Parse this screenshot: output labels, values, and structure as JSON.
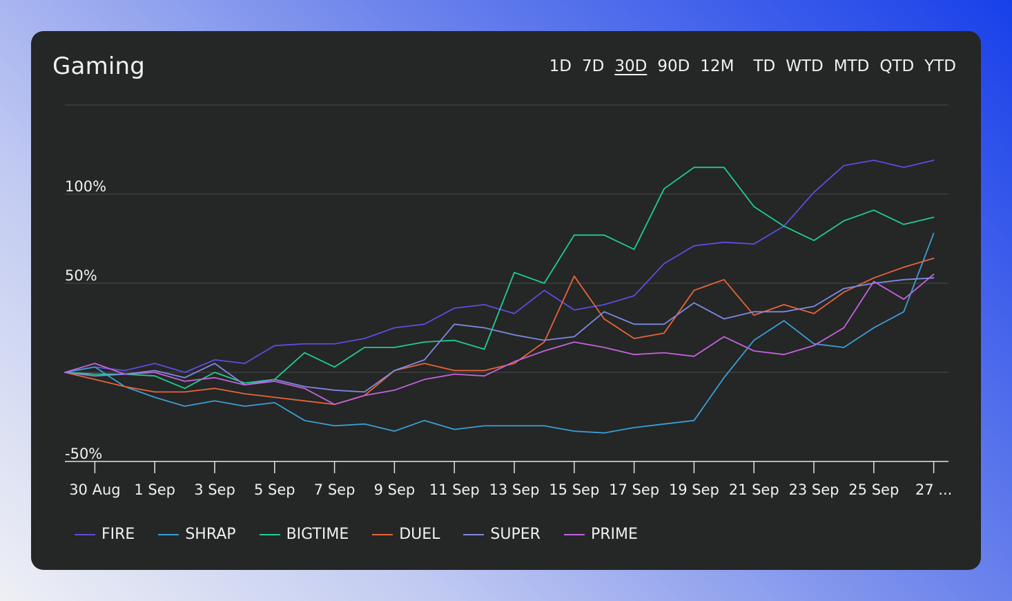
{
  "card": {
    "title": "Gaming",
    "ranges": [
      "1D",
      "7D",
      "30D",
      "90D",
      "12M",
      "TD",
      "WTD",
      "MTD",
      "QTD",
      "YTD"
    ],
    "active_range": "30D"
  },
  "chart_data": {
    "type": "line",
    "x": [
      "29 Aug",
      "30 Aug",
      "31 Aug",
      "1 Sep",
      "2 Sep",
      "3 Sep",
      "4 Sep",
      "5 Sep",
      "6 Sep",
      "7 Sep",
      "8 Sep",
      "9 Sep",
      "10 Sep",
      "11 Sep",
      "12 Sep",
      "13 Sep",
      "14 Sep",
      "15 Sep",
      "16 Sep",
      "17 Sep",
      "18 Sep",
      "19 Sep",
      "20 Sep",
      "21 Sep",
      "22 Sep",
      "23 Sep",
      "24 Sep",
      "25 Sep",
      "26 Sep",
      "27 Sep"
    ],
    "x_tick_labels": [
      "30 Aug",
      "1 Sep",
      "3 Sep",
      "5 Sep",
      "7 Sep",
      "9 Sep",
      "11 Sep",
      "13 Sep",
      "15 Sep",
      "17 Sep",
      "19 Sep",
      "21 Sep",
      "23 Sep",
      "25 Sep",
      "27 ..."
    ],
    "y_ticks": [
      -50,
      50,
      100
    ],
    "y_tick_labels": [
      "-50%",
      "50%",
      "100%"
    ],
    "ylim": [
      -50,
      150
    ],
    "grid": true,
    "legend_position": "bottom-left",
    "series": [
      {
        "name": "FIRE",
        "color": "#5a4fe0",
        "values": [
          0,
          3,
          1,
          5,
          0,
          7,
          5,
          15,
          16,
          16,
          19,
          25,
          27,
          36,
          38,
          33,
          46,
          35,
          38,
          43,
          61,
          71,
          73,
          72,
          82,
          101,
          116,
          119,
          115,
          119
        ]
      },
      {
        "name": "SHRAP",
        "color": "#3aa0d6",
        "values": [
          0,
          3,
          -8,
          -14,
          -19,
          -16,
          -19,
          -17,
          -27,
          -30,
          -29,
          -33,
          -27,
          -32,
          -30,
          -30,
          -30,
          -33,
          -34,
          -31,
          -29,
          -27,
          -3,
          18,
          29,
          16,
          14,
          25,
          34,
          78
        ]
      },
      {
        "name": "BIGTIME",
        "color": "#1fd08a",
        "values": [
          0,
          -1,
          -1,
          -2,
          -9,
          0,
          -6,
          -4,
          11,
          3,
          14,
          14,
          17,
          18,
          13,
          56,
          50,
          77,
          77,
          69,
          103,
          115,
          115,
          93,
          82,
          74,
          85,
          91,
          83,
          87
        ]
      },
      {
        "name": "DUEL",
        "color": "#e76538",
        "values": [
          0,
          -4,
          -8,
          -11,
          -11,
          -9,
          -12,
          -14,
          -16,
          -18,
          -13,
          1,
          5,
          1,
          1,
          5,
          17,
          54,
          30,
          19,
          22,
          46,
          52,
          32,
          38,
          33,
          45,
          53,
          59,
          64
        ]
      },
      {
        "name": "SUPER",
        "color": "#7d8be2",
        "values": [
          0,
          -2,
          -1,
          1,
          -3,
          5,
          -7,
          -4,
          -8,
          -10,
          -11,
          1,
          7,
          27,
          25,
          21,
          18,
          20,
          34,
          27,
          27,
          39,
          30,
          34,
          34,
          37,
          47,
          50,
          52,
          53
        ]
      },
      {
        "name": "PRIME",
        "color": "#c563de",
        "values": [
          0,
          5,
          -1,
          0,
          -5,
          -3,
          -7,
          -5,
          -9,
          -18,
          -13,
          -10,
          -4,
          -1,
          -2,
          6,
          12,
          17,
          14,
          10,
          11,
          9,
          20,
          12,
          10,
          15,
          25,
          51,
          41,
          55
        ]
      }
    ]
  }
}
